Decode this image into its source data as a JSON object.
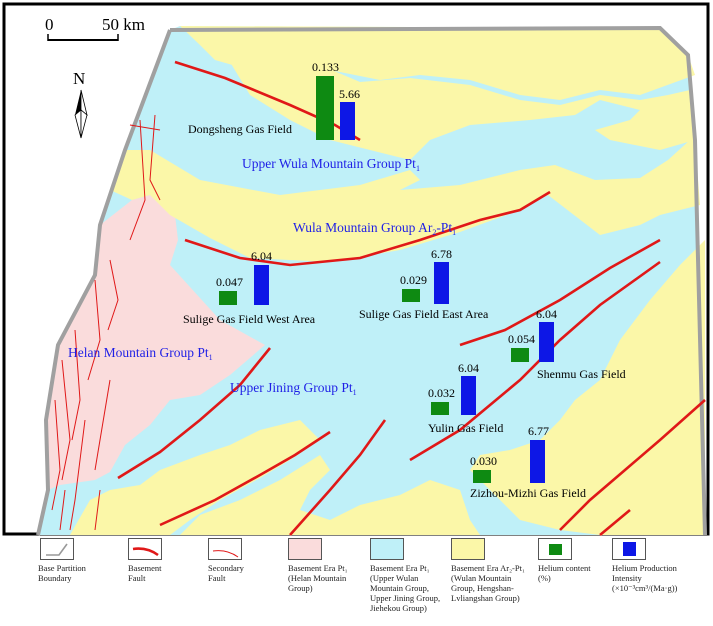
{
  "scale_bar": {
    "zero": "0",
    "distance": "50 km"
  },
  "north_arrow": {
    "label": "N"
  },
  "regions": {
    "upper_wula": "Upper Wula Mountain Group Pt",
    "upper_wula_sub": "1",
    "wula": "Wula Mountain Group  Ar",
    "wula_sub1": "2",
    "wula_dash": "-Pt",
    "wula_sub2": "1",
    "helan": "Helan Mountain Group Pt",
    "helan_sub": "1",
    "upper_jining": "Upper Jining Group Pt",
    "upper_jining_sub": "1"
  },
  "gas_fields": [
    {
      "name": "Dongsheng Gas Field",
      "helium_content": "0.133",
      "production_intensity": "5.66"
    },
    {
      "name": "Sulige Gas Field West Area",
      "helium_content": "0.047",
      "production_intensity": "6.04"
    },
    {
      "name": "Sulige Gas Field East Area",
      "helium_content": "0.029",
      "production_intensity": "6.78"
    },
    {
      "name": "Shenmu Gas Field",
      "helium_content": "0.054",
      "production_intensity": "6.04"
    },
    {
      "name": "Yulin Gas Field",
      "helium_content": "0.032",
      "production_intensity": "6.04"
    },
    {
      "name": "Zizhou-Mizhi Gas Field",
      "helium_content": "0.030",
      "production_intensity": "6.77"
    }
  ],
  "colors": {
    "helan_fill": "#fadcdc",
    "jining_fill": "#bff0f8",
    "ar_fill": "#fbf7a8",
    "helium_bar": "#0e8a12",
    "production_bar": "#0d17e6",
    "fault": "#e01818"
  },
  "legend": [
    {
      "lines": [
        "Base Partition",
        "Boundary"
      ]
    },
    {
      "lines": [
        "Basement",
        "Fault"
      ]
    },
    {
      "lines": [
        "Secondary",
        "Fault"
      ]
    },
    {
      "lines": [
        "Basement Era Pt₁",
        "(Helan Mountain",
        "Group)"
      ]
    },
    {
      "lines": [
        "Basement Era Pt₁",
        "(Upper Wulan",
        "Mountain Group,",
        "Upper Jining Group,",
        "Jiehekou Group)"
      ]
    },
    {
      "lines": [
        "Basement Era Ar₂-Pt₁",
        "(Wulan Mountain",
        "Group, Hengshan-",
        "Lvliangshan Group)"
      ]
    },
    {
      "lines": [
        "Helium content",
        "(%)"
      ]
    },
    {
      "lines": [
        "Helium Production",
        "Intensity",
        "(×10⁻³cm³/(Ma·g))"
      ]
    }
  ]
}
